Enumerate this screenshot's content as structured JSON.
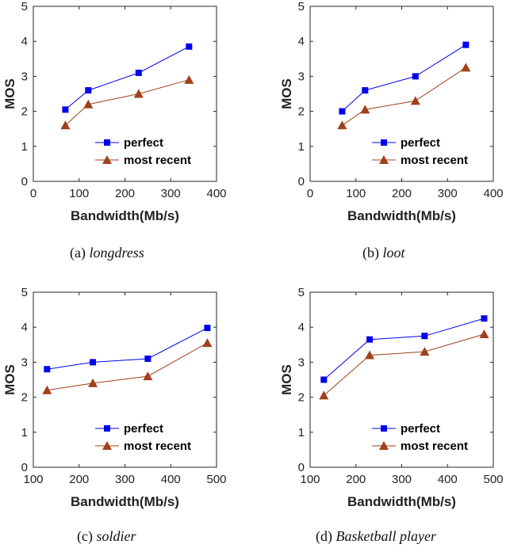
{
  "chart_data": [
    {
      "type": "line",
      "caption_label": "(a)",
      "caption_name": "longdress",
      "xlabel": "Bandwidth(Mb/s)",
      "ylabel": "MOS",
      "xlim": [
        0,
        400
      ],
      "ylim": [
        0,
        5
      ],
      "xticks": [
        "0",
        "100",
        "200",
        "300",
        "400"
      ],
      "yticks": [
        "0",
        "1",
        "2",
        "3",
        "4",
        "5"
      ],
      "legend_position": "bottom-right",
      "series": [
        {
          "name": "perfect",
          "color": "#0000ee",
          "marker": "square",
          "x": [
            70,
            120,
            230,
            340
          ],
          "y": [
            2.05,
            2.6,
            3.1,
            3.85
          ]
        },
        {
          "name": "most recent",
          "color": "#a0401a",
          "marker": "triangle",
          "x": [
            70,
            120,
            230,
            340
          ],
          "y": [
            1.6,
            2.2,
            2.5,
            2.9
          ]
        }
      ]
    },
    {
      "type": "line",
      "caption_label": "(b)",
      "caption_name": "loot",
      "xlabel": "Bandwidth(Mb/s)",
      "ylabel": "MOS",
      "xlim": [
        0,
        400
      ],
      "ylim": [
        0,
        5
      ],
      "xticks": [
        "0",
        "100",
        "200",
        "300",
        "400"
      ],
      "yticks": [
        "0",
        "1",
        "2",
        "3",
        "4",
        "5"
      ],
      "legend_position": "bottom-right",
      "series": [
        {
          "name": "perfect",
          "color": "#0000ee",
          "marker": "square",
          "x": [
            70,
            120,
            230,
            340
          ],
          "y": [
            2.0,
            2.6,
            3.0,
            3.9
          ]
        },
        {
          "name": "most recent",
          "color": "#a0401a",
          "marker": "triangle",
          "x": [
            70,
            120,
            230,
            340
          ],
          "y": [
            1.6,
            2.05,
            2.3,
            3.25
          ]
        }
      ]
    },
    {
      "type": "line",
      "caption_label": "(c)",
      "caption_name": "soldier",
      "xlabel": "Bandwidth(Mb/s)",
      "ylabel": "MOS",
      "xlim": [
        100,
        500
      ],
      "ylim": [
        0,
        5
      ],
      "xticks": [
        "100",
        "200",
        "300",
        "400",
        "500"
      ],
      "yticks": [
        "0",
        "1",
        "2",
        "3",
        "4",
        "5"
      ],
      "legend_position": "bottom-right",
      "series": [
        {
          "name": "perfect",
          "color": "#0000ee",
          "marker": "square",
          "x": [
            130,
            230,
            350,
            480
          ],
          "y": [
            2.8,
            3.0,
            3.1,
            3.98
          ]
        },
        {
          "name": "most recent",
          "color": "#a0401a",
          "marker": "triangle",
          "x": [
            130,
            230,
            350,
            480
          ],
          "y": [
            2.2,
            2.4,
            2.6,
            3.55
          ]
        }
      ]
    },
    {
      "type": "line",
      "caption_label": "(d)",
      "caption_name": "Basketball player",
      "xlabel": "Bandwidth(Mb/s)",
      "ylabel": "MOS",
      "xlim": [
        100,
        500
      ],
      "ylim": [
        0,
        5
      ],
      "xticks": [
        "100",
        "200",
        "300",
        "400",
        "500"
      ],
      "yticks": [
        "0",
        "1",
        "2",
        "3",
        "4",
        "5"
      ],
      "legend_position": "bottom-right",
      "series": [
        {
          "name": "perfect",
          "color": "#0000ee",
          "marker": "square",
          "x": [
            130,
            230,
            350,
            480
          ],
          "y": [
            2.5,
            3.65,
            3.75,
            4.25
          ]
        },
        {
          "name": "most recent",
          "color": "#a0401a",
          "marker": "triangle",
          "x": [
            130,
            230,
            350,
            480
          ],
          "y": [
            2.05,
            3.2,
            3.3,
            3.8
          ]
        }
      ]
    }
  ]
}
